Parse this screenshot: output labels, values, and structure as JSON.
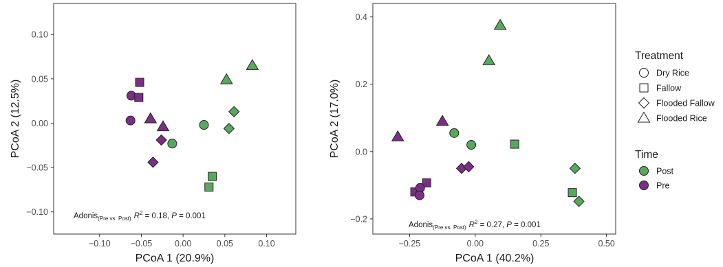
{
  "chart_data": [
    {
      "type": "scatter",
      "xlabel": "PCoA 1 (20.9%)",
      "ylabel": "PCoA 2 (12.5%)",
      "xlim": [
        -0.155,
        0.135
      ],
      "ylim": [
        -0.125,
        0.135
      ],
      "xticks": [
        -0.1,
        -0.05,
        0.0,
        0.05,
        0.1
      ],
      "xtick_labels": [
        "−0.10",
        "−0.05",
        "0.00",
        "0.05",
        "0.10"
      ],
      "yticks": [
        -0.1,
        -0.05,
        0.0,
        0.05,
        0.1
      ],
      "ytick_labels": [
        "−0.10",
        "−0.05",
        "0.00",
        "0.05",
        "0.10"
      ],
      "annotation": {
        "prefix": "Adonis",
        "subscript": "(Pre vs. Post)",
        "r2_label": "R",
        "r2_sup": "2",
        "r2_value": " = 0.18, ",
        "p_label": "P",
        "p_value": " = 0.001"
      },
      "points": [
        {
          "x": -0.062,
          "y": 0.031,
          "treatment": "Dry Rice",
          "time": "Pre"
        },
        {
          "x": -0.063,
          "y": 0.003,
          "treatment": "Dry Rice",
          "time": "Pre"
        },
        {
          "x": -0.052,
          "y": 0.046,
          "treatment": "Fallow",
          "time": "Pre"
        },
        {
          "x": -0.053,
          "y": 0.029,
          "treatment": "Fallow",
          "time": "Pre"
        },
        {
          "x": -0.039,
          "y": 0.005,
          "treatment": "Flooded Rice",
          "time": "Pre"
        },
        {
          "x": -0.024,
          "y": -0.004,
          "treatment": "Flooded Rice",
          "time": "Pre"
        },
        {
          "x": -0.026,
          "y": -0.019,
          "treatment": "Flooded Fallow",
          "time": "Pre"
        },
        {
          "x": -0.036,
          "y": -0.044,
          "treatment": "Flooded Fallow",
          "time": "Pre"
        },
        {
          "x": -0.013,
          "y": -0.023,
          "treatment": "Dry Rice",
          "time": "Post"
        },
        {
          "x": 0.025,
          "y": -0.002,
          "treatment": "Dry Rice",
          "time": "Post"
        },
        {
          "x": 0.035,
          "y": -0.06,
          "treatment": "Fallow",
          "time": "Post"
        },
        {
          "x": 0.031,
          "y": -0.072,
          "treatment": "Fallow",
          "time": "Post"
        },
        {
          "x": 0.061,
          "y": 0.013,
          "treatment": "Flooded Fallow",
          "time": "Post"
        },
        {
          "x": 0.055,
          "y": -0.006,
          "treatment": "Flooded Fallow",
          "time": "Post"
        },
        {
          "x": 0.052,
          "y": 0.049,
          "treatment": "Flooded Rice",
          "time": "Post"
        },
        {
          "x": 0.083,
          "y": 0.065,
          "treatment": "Flooded Rice",
          "time": "Post"
        }
      ]
    },
    {
      "type": "scatter",
      "xlabel": "PCoA 1 (40.2%)",
      "ylabel": "PCoA 2 (17.0%)",
      "xlim": [
        -0.39,
        0.535
      ],
      "ylim": [
        -0.245,
        0.44
      ],
      "xticks": [
        -0.25,
        0.0,
        0.25,
        0.5
      ],
      "xtick_labels": [
        "−0.25",
        "0.00",
        "0.25",
        "0.50"
      ],
      "yticks": [
        -0.2,
        0.0,
        0.2,
        0.4
      ],
      "ytick_labels": [
        "−0.2",
        "0.0",
        "0.2",
        "0.4"
      ],
      "annotation": {
        "prefix": "Adonis",
        "subscript": "(Pre vs. Post)",
        "r2_label": "R",
        "r2_sup": "2",
        "r2_value": " = 0.27, ",
        "p_label": "P",
        "p_value": " = 0.001"
      },
      "points": [
        {
          "x": -0.295,
          "y": 0.044,
          "treatment": "Flooded Rice",
          "time": "Pre"
        },
        {
          "x": -0.125,
          "y": 0.09,
          "treatment": "Flooded Rice",
          "time": "Pre"
        },
        {
          "x": -0.052,
          "y": -0.05,
          "treatment": "Flooded Fallow",
          "time": "Pre"
        },
        {
          "x": -0.025,
          "y": -0.045,
          "treatment": "Flooded Fallow",
          "time": "Pre"
        },
        {
          "x": -0.185,
          "y": -0.093,
          "treatment": "Fallow",
          "time": "Pre"
        },
        {
          "x": -0.23,
          "y": -0.12,
          "treatment": "Fallow",
          "time": "Pre"
        },
        {
          "x": -0.21,
          "y": -0.108,
          "treatment": "Dry Rice",
          "time": "Pre"
        },
        {
          "x": -0.212,
          "y": -0.13,
          "treatment": "Dry Rice",
          "time": "Pre"
        },
        {
          "x": -0.08,
          "y": 0.055,
          "treatment": "Dry Rice",
          "time": "Post"
        },
        {
          "x": -0.015,
          "y": 0.02,
          "treatment": "Dry Rice",
          "time": "Post"
        },
        {
          "x": 0.15,
          "y": 0.022,
          "treatment": "Fallow",
          "time": "Post"
        },
        {
          "x": 0.37,
          "y": -0.122,
          "treatment": "Fallow",
          "time": "Post"
        },
        {
          "x": 0.38,
          "y": -0.05,
          "treatment": "Flooded Fallow",
          "time": "Post"
        },
        {
          "x": 0.395,
          "y": -0.148,
          "treatment": "Flooded Fallow",
          "time": "Post"
        },
        {
          "x": 0.052,
          "y": 0.27,
          "treatment": "Flooded Rice",
          "time": "Post"
        },
        {
          "x": 0.095,
          "y": 0.375,
          "treatment": "Flooded Rice",
          "time": "Post"
        }
      ]
    }
  ],
  "legend": {
    "treatment_title": "Treatment",
    "treatments": [
      {
        "label": "Dry Rice",
        "shape": "circle"
      },
      {
        "label": "Fallow",
        "shape": "square"
      },
      {
        "label": "Flooded Fallow",
        "shape": "diamond"
      },
      {
        "label": "Flooded Rice",
        "shape": "triangle"
      }
    ],
    "time_title": "Time",
    "times": [
      {
        "label": "Post",
        "color": "#5aa85e"
      },
      {
        "label": "Pre",
        "color": "#7b2f84"
      }
    ]
  },
  "colors": {
    "Post": "#5aa85e",
    "Pre": "#7b2f84",
    "outline": "#222222",
    "panel_border": "#333333"
  },
  "shapes": {
    "Dry Rice": "circle",
    "Fallow": "square",
    "Flooded Fallow": "diamond",
    "Flooded Rice": "triangle"
  }
}
